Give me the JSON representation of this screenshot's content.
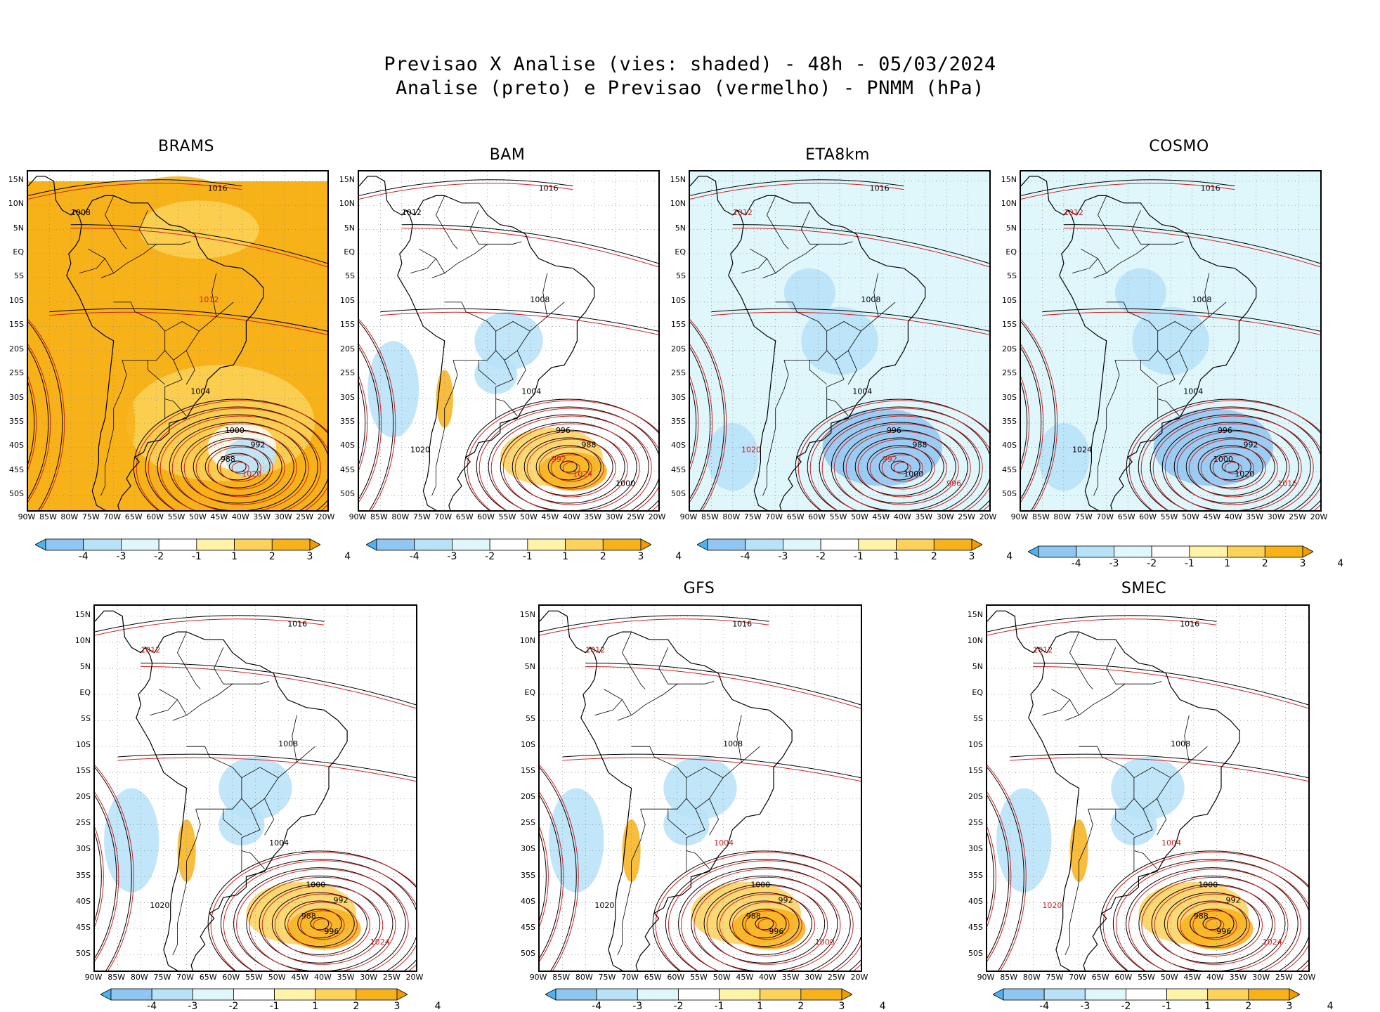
{
  "header": {
    "line1": "Previsao X Analise (vies: shaded) - 48h - 05/03/2024",
    "line2": "Analise (preto) e Previsao (vermelho) - PNMM (hPa)"
  },
  "lat_labels": [
    "15N",
    "10N",
    "5N",
    "EQ",
    "5S",
    "10S",
    "15S",
    "20S",
    "25S",
    "30S",
    "35S",
    "40S",
    "45S",
    "50S"
  ],
  "lon_labels": [
    "90W",
    "85W",
    "80W",
    "75W",
    "70W",
    "65W",
    "60W",
    "55W",
    "50W",
    "45W",
    "40W",
    "35W",
    "30W",
    "25W",
    "20W"
  ],
  "colorbar": {
    "ticks": [
      "-4",
      "-3",
      "-2",
      "-1",
      "1",
      "2",
      "3",
      "4"
    ],
    "colors": [
      "#4fb2ee",
      "#8fc6f2",
      "#b7e2f8",
      "#dff6fb",
      "#ffffff",
      "#fff3a8",
      "#fcd25a",
      "#f7b21a",
      "#f39c00"
    ]
  },
  "colors": {
    "analysis_contour": "#000000",
    "forecast_contour": "#d22020",
    "grid": "#888888",
    "land": "#000000"
  },
  "panels": [
    {
      "id": "brams",
      "title": "BRAMS",
      "bias": "warm",
      "labels": [
        {
          "t": "1016",
          "c": "k"
        },
        {
          "t": "1008",
          "c": "k"
        },
        {
          "t": "1012",
          "c": "r"
        },
        {
          "t": "1004",
          "c": "k"
        },
        {
          "t": "1000",
          "c": "k"
        },
        {
          "t": "992",
          "c": "k"
        },
        {
          "t": "988",
          "c": "k"
        },
        {
          "t": "1020",
          "c": "r"
        }
      ]
    },
    {
      "id": "bam",
      "title": "BAM",
      "bias": "mixed",
      "labels": [
        {
          "t": "1016",
          "c": "k"
        },
        {
          "t": "1012",
          "c": "k"
        },
        {
          "t": "1008",
          "c": "k"
        },
        {
          "t": "1004",
          "c": "k"
        },
        {
          "t": "996",
          "c": "k"
        },
        {
          "t": "988",
          "c": "k"
        },
        {
          "t": "992",
          "c": "r"
        },
        {
          "t": "1024",
          "c": "r"
        },
        {
          "t": "1020",
          "c": "k"
        },
        {
          "t": "1000",
          "c": "k"
        }
      ]
    },
    {
      "id": "eta8km",
      "title": "ETA8km",
      "bias": "cool",
      "labels": [
        {
          "t": "1016",
          "c": "k"
        },
        {
          "t": "1012",
          "c": "r"
        },
        {
          "t": "1008",
          "c": "k"
        },
        {
          "t": "1004",
          "c": "k"
        },
        {
          "t": "996",
          "c": "k"
        },
        {
          "t": "988",
          "c": "k"
        },
        {
          "t": "992",
          "c": "r"
        },
        {
          "t": "1000",
          "c": "k"
        },
        {
          "t": "1020",
          "c": "r"
        },
        {
          "t": "996",
          "c": "r"
        }
      ]
    },
    {
      "id": "cosmo",
      "title": "COSMO",
      "bias": "cool",
      "labels": [
        {
          "t": "1016",
          "c": "k"
        },
        {
          "t": "1012",
          "c": "r"
        },
        {
          "t": "1008",
          "c": "k"
        },
        {
          "t": "1004",
          "c": "k"
        },
        {
          "t": "996",
          "c": "k"
        },
        {
          "t": "992",
          "c": "k"
        },
        {
          "t": "1000",
          "c": "k"
        },
        {
          "t": "1020",
          "c": "k"
        },
        {
          "t": "1024",
          "c": "k"
        },
        {
          "t": "1016",
          "c": "r"
        }
      ]
    },
    {
      "id": "model5",
      "title": "",
      "bias": "mixed",
      "labels": [
        {
          "t": "1016",
          "c": "k"
        },
        {
          "t": "1012",
          "c": "r"
        },
        {
          "t": "1008",
          "c": "k"
        },
        {
          "t": "1004",
          "c": "k"
        },
        {
          "t": "1000",
          "c": "k"
        },
        {
          "t": "992",
          "c": "k"
        },
        {
          "t": "988",
          "c": "k"
        },
        {
          "t": "996",
          "c": "k"
        },
        {
          "t": "1020",
          "c": "k"
        },
        {
          "t": "1024",
          "c": "r"
        }
      ]
    },
    {
      "id": "gfs",
      "title": "GFS",
      "bias": "mixed",
      "labels": [
        {
          "t": "1016",
          "c": "k"
        },
        {
          "t": "1012",
          "c": "r"
        },
        {
          "t": "1008",
          "c": "k"
        },
        {
          "t": "1004",
          "c": "r"
        },
        {
          "t": "1000",
          "c": "k"
        },
        {
          "t": "992",
          "c": "k"
        },
        {
          "t": "988",
          "c": "k"
        },
        {
          "t": "996",
          "c": "k"
        },
        {
          "t": "1020",
          "c": "k"
        },
        {
          "t": "1000",
          "c": "r"
        }
      ]
    },
    {
      "id": "smec",
      "title": "SMEC",
      "bias": "mixed",
      "labels": [
        {
          "t": "1016",
          "c": "k"
        },
        {
          "t": "1012",
          "c": "r"
        },
        {
          "t": "1008",
          "c": "k"
        },
        {
          "t": "1004",
          "c": "r"
        },
        {
          "t": "1000",
          "c": "k"
        },
        {
          "t": "992",
          "c": "k"
        },
        {
          "t": "988",
          "c": "k"
        },
        {
          "t": "996",
          "c": "k"
        },
        {
          "t": "1020",
          "c": "r"
        },
        {
          "t": "1024",
          "c": "r"
        }
      ]
    }
  ]
}
